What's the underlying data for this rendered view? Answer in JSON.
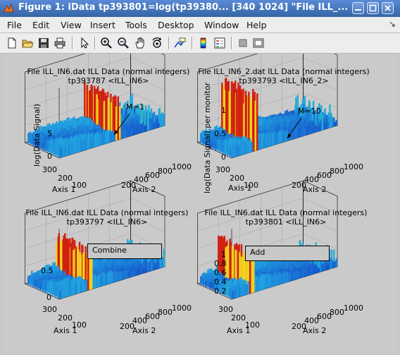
{
  "window": {
    "title": "Figure 1: iData tp393801=log(tp39380... [340  1024] \"File ILL_...",
    "minimize_icon": "minimize-icon",
    "maximize_icon": "maximize-icon",
    "close_icon": "close-icon"
  },
  "menubar": {
    "items": [
      "File",
      "Edit",
      "View",
      "Insert",
      "Tools",
      "Desktop",
      "Window",
      "Help"
    ],
    "dock_glyph": "↘"
  },
  "toolbar": {
    "icons": [
      "new-figure-icon",
      "open-file-icon",
      "save-icon",
      "print-icon",
      "edit-plot-arrow-icon",
      "zoom-in-icon",
      "zoom-out-icon",
      "pan-hand-icon",
      "rotate-3d-icon",
      "data-cursor-icon",
      "colorbar-icon",
      "legend-icon",
      "hide-plot-tools-icon",
      "show-plot-tools-icon"
    ]
  },
  "plots": [
    {
      "title1": "File ILL_IN6.dat ILL Data (normal integers)",
      "title2": "tp393787 <ILL_IN6>",
      "ylabel": "log(Data Signal)",
      "x1label": "Axis 1",
      "x2label": "Axis 2",
      "zticks": [
        "5",
        "0"
      ],
      "a1ticks": [
        "300",
        "200",
        "100"
      ],
      "a2ticks": [
        "200",
        "400",
        "600",
        "800",
        "1000"
      ],
      "annotation": "M=1"
    },
    {
      "title1": "File ILL_IN6_2.dat ILL Data (normal integers)",
      "title2": "tp393793 <ILL_IN6_2>",
      "ylabel": "log(Data Signal) per monitor",
      "x1label": "Axis 1",
      "x2label": "Axis 2",
      "zticks": [
        "1",
        "0.5",
        "0"
      ],
      "a1ticks": [
        "300",
        "200",
        "100"
      ],
      "a2ticks": [
        "200",
        "400",
        "600",
        "800",
        "1000"
      ],
      "annotation": "M=10"
    },
    {
      "title1": "File ILL_IN6.dat ILL Data (normal integers)",
      "title2": "tp393797 <ILL_IN6>",
      "x1label": "Axis 1",
      "x2label": "Axis 2",
      "zticks": [
        "0.5",
        "0"
      ],
      "a1ticks": [
        "300",
        "200",
        "100"
      ],
      "a2ticks": [
        "200",
        "400",
        "600",
        "800",
        "1000"
      ],
      "legend": "Combine"
    },
    {
      "title1": "File ILL_IN6.dat ILL Data (normal integers)",
      "title2": "tp393801 <ILL_IN6>",
      "x1label": "Axis 1",
      "x2label": "Axis 2",
      "zticks": [
        "1",
        "0.8",
        "0.6",
        "0.4",
        "0.2"
      ],
      "a1ticks": [
        "300",
        "200",
        "100"
      ],
      "a2ticks": [
        "200",
        "400",
        "600",
        "800",
        "1000"
      ],
      "legend": "Add"
    }
  ],
  "colors": {
    "titlebar": "#3465a4",
    "surface_low": "#1030c0",
    "surface_mid": "#20a0e0",
    "surface_high": "#f0d020",
    "peak": "#d02010"
  }
}
